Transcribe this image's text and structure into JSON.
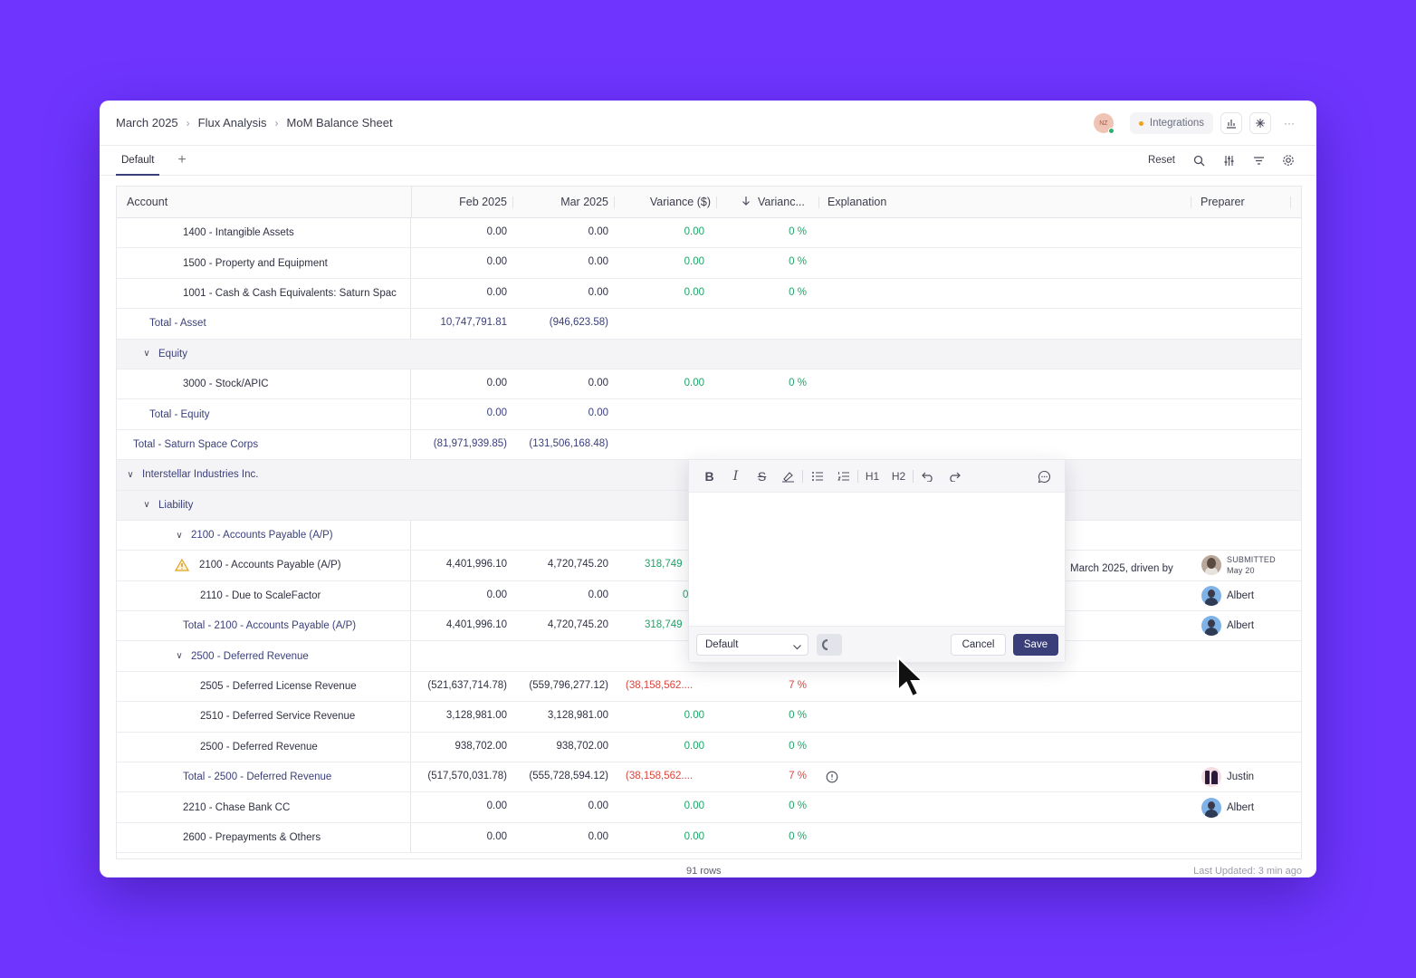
{
  "breadcrumb": [
    "March 2025",
    "Flux Analysis",
    "MoM Balance Sheet"
  ],
  "header_right": {
    "avatar_initials": "NZ",
    "integrations_label": "Integrations",
    "more_label": "···"
  },
  "tabs": {
    "active": "Default"
  },
  "toolbar": {
    "reset_label": "Reset"
  },
  "columns": [
    "Account",
    "Feb 2025",
    "Mar 2025",
    "Variance ($)",
    "Varianc...",
    "Explanation",
    "Preparer"
  ],
  "rows": [
    {
      "account": "1400 - Intangible Assets",
      "feb": "0.00",
      "mar": "0.00",
      "var": "0.00",
      "pct": "0 %"
    },
    {
      "account": "1500 - Property and Equipment",
      "feb": "0.00",
      "mar": "0.00",
      "var": "0.00",
      "pct": "0 %"
    },
    {
      "account": "1001 - Cash & Cash Equivalents: Saturn Spac",
      "feb": "0.00",
      "mar": "0.00",
      "var": "0.00",
      "pct": "0 %"
    },
    {
      "account": "Total - Asset",
      "feb": "10,747,791.81",
      "mar": "(946,623.58)",
      "var": "",
      "pct": ""
    },
    {
      "account": "Equity"
    },
    {
      "account": "3000 - Stock/APIC",
      "feb": "0.00",
      "mar": "0.00",
      "var": "0.00",
      "pct": "0 %"
    },
    {
      "account": "Total - Equity",
      "feb": "0.00",
      "mar": "0.00",
      "var": "",
      "pct": ""
    },
    {
      "account": "Total - Saturn Space Corps",
      "feb": "(81,971,939.85)",
      "mar": "(131,506,168.48)",
      "var": "",
      "pct": ""
    },
    {
      "account": "Interstellar Industries Inc."
    },
    {
      "account": "Liability"
    },
    {
      "account": "2100 - Accounts Payable (A/P)",
      "feb": "",
      "mar": "",
      "var": "",
      "pct": ""
    },
    {
      "account": "2100 - Accounts Payable (A/P)",
      "feb": "4,401,996.10",
      "mar": "4,720,745.20",
      "var": "318,749",
      "pct": "",
      "explanation": "March 2025, driven by",
      "status": "SUBMITTED",
      "status_date": "May 20"
    },
    {
      "account": "2110 - Due to ScaleFactor",
      "feb": "0.00",
      "mar": "0.00",
      "var": "0",
      "pct": "",
      "preparer": "Albert"
    },
    {
      "account": "Total - 2100 - Accounts Payable (A/P)",
      "feb": "4,401,996.10",
      "mar": "4,720,745.20",
      "var": "318,749",
      "pct": "",
      "preparer": "Albert"
    },
    {
      "account": "2500 - Deferred Revenue",
      "feb": "",
      "mar": "",
      "var": "",
      "pct": ""
    },
    {
      "account": "2505 - Deferred License Revenue",
      "feb": "(521,637,714.78)",
      "mar": "(559,796,277.12)",
      "var": "(38,158,562....",
      "pct": "7 %"
    },
    {
      "account": "2510 - Deferred Service Revenue",
      "feb": "3,128,981.00",
      "mar": "3,128,981.00",
      "var": "0.00",
      "pct": "0 %"
    },
    {
      "account": "2500 - Deferred Revenue",
      "feb": "938,702.00",
      "mar": "938,702.00",
      "var": "0.00",
      "pct": "0 %"
    },
    {
      "account": "Total - 2500 - Deferred Revenue",
      "feb": "(517,570,031.78)",
      "mar": "(555,728,594.12)",
      "var": "(38,158,562....",
      "pct": "7 %",
      "preparer": "Justin"
    },
    {
      "account": "2210 - Chase Bank CC",
      "feb": "0.00",
      "mar": "0.00",
      "var": "0.00",
      "pct": "0 %",
      "preparer": "Albert"
    },
    {
      "account": "2600 - Prepayments & Others",
      "feb": "0.00",
      "mar": "0.00",
      "var": "0.00",
      "pct": "0 %"
    }
  ],
  "footer": {
    "row_count": "91 rows",
    "last_updated": "Last Updated: 3 min ago"
  },
  "editor": {
    "h1_label": "H1",
    "h2_label": "H2",
    "template_select": "Default",
    "cancel_label": "Cancel",
    "save_label": "Save"
  },
  "colors": {
    "background": "#6f35ff",
    "accent": "#3a3f7a",
    "positive": "#1ea466",
    "negative": "#d9473f"
  }
}
